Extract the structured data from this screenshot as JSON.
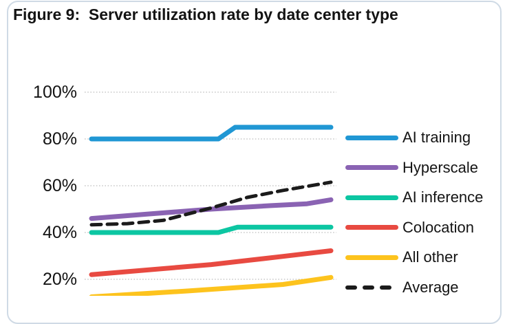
{
  "figure_label": "Figure 9:",
  "chart_data": {
    "type": "line",
    "title": "Figure 9:  Server utilization rate by date center type",
    "xlabel": "",
    "ylabel": "",
    "grid": "horizontal-dotted",
    "legend_position": "right",
    "y_ticks": [
      100,
      80,
      60,
      40,
      20
    ],
    "y_tick_labels": [
      "100%",
      "80%",
      "60%",
      "40%",
      "20%"
    ],
    "y_unit": "%",
    "visible_value_range": [
      13,
      100
    ],
    "x_range_normalized": [
      0,
      1
    ],
    "note_x_axis": "x-axis tick labels are cut off below the visible area",
    "series": [
      {
        "name": "AI training",
        "color": "#2097d4",
        "style": "solid",
        "points": [
          [
            0,
            80
          ],
          [
            0.53,
            80
          ],
          [
            0.6,
            85
          ],
          [
            1,
            85
          ]
        ]
      },
      {
        "name": "Hyperscale",
        "color": "#8a63b3",
        "style": "solid",
        "points": [
          [
            0,
            46
          ],
          [
            0.25,
            48
          ],
          [
            0.5,
            50
          ],
          [
            0.75,
            51.5
          ],
          [
            0.9,
            52.3
          ],
          [
            1,
            54
          ]
        ]
      },
      {
        "name": "AI inference",
        "color": "#0cc6a2",
        "style": "solid",
        "points": [
          [
            0,
            40
          ],
          [
            0.53,
            40
          ],
          [
            0.61,
            42.3
          ],
          [
            1,
            42.3
          ]
        ]
      },
      {
        "name": "Colocation",
        "color": "#e84a41",
        "style": "solid",
        "points": [
          [
            0,
            22
          ],
          [
            0.5,
            26.3
          ],
          [
            0.8,
            29.8
          ],
          [
            1,
            32.2
          ]
        ]
      },
      {
        "name": "All other",
        "color": "#fdc31d",
        "style": "solid",
        "points": [
          [
            0,
            12.5
          ],
          [
            0.4,
            15
          ],
          [
            0.8,
            17.8
          ],
          [
            1,
            20.8
          ]
        ]
      },
      {
        "name": "Average",
        "color": "#1b1b1b",
        "style": "dashed",
        "points": [
          [
            0,
            43.3
          ],
          [
            0.15,
            43.8
          ],
          [
            0.3,
            45.2
          ],
          [
            0.5,
            50.5
          ],
          [
            0.65,
            55
          ],
          [
            0.8,
            58
          ],
          [
            1,
            61.5
          ]
        ]
      }
    ],
    "legend": [
      "AI training",
      "Hyperscale",
      "AI inference",
      "Colocation",
      "All other",
      "Average"
    ]
  },
  "colors": {
    "card_border": "#cfdae5",
    "gridline": "#bdbdbd",
    "text": "#131313",
    "ai_training": "#2097d4",
    "hyperscale": "#8a63b3",
    "ai_inference": "#0cc6a2",
    "colocation": "#e84a41",
    "all_other": "#fdc31d",
    "average": "#1b1b1b"
  }
}
